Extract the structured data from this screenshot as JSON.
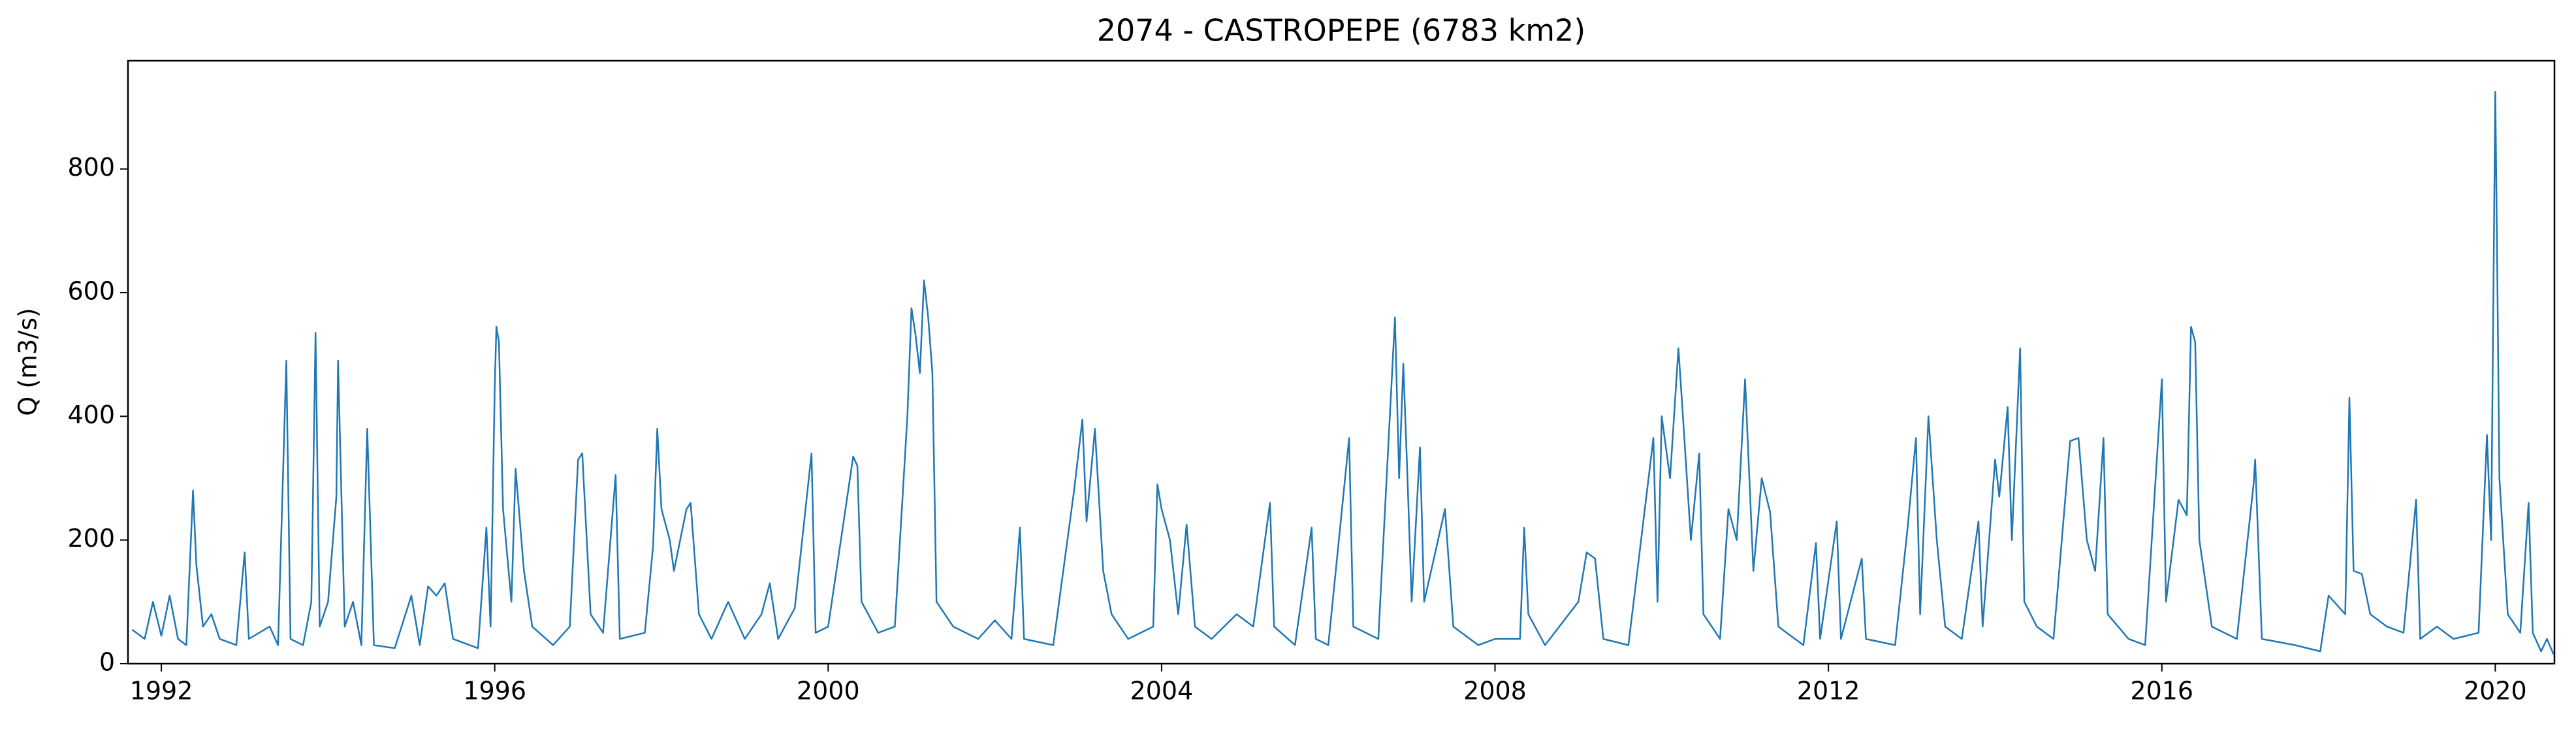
{
  "chart_data": {
    "type": "line",
    "title": "2074 - CASTROPEPE (6783 km2)",
    "y_label": "Q (m3/s)",
    "xlim": [
      1991.6,
      2020.71
    ],
    "xticks": [
      1992,
      1996,
      2000,
      2004,
      2008,
      2012,
      2016,
      2020
    ],
    "ylim": [
      0,
      975
    ],
    "yticks": [
      0,
      200,
      400,
      600,
      800
    ],
    "grid": false,
    "series": [
      {
        "name": "Q",
        "color": "#1f77b4",
        "x": [
          1991.65,
          1991.8,
          1991.9,
          1992.0,
          1992.1,
          1992.2,
          1992.3,
          1992.38,
          1992.42,
          1992.5,
          1992.6,
          1992.7,
          1992.9,
          1993.0,
          1993.05,
          1993.3,
          1993.4,
          1993.5,
          1993.55,
          1993.7,
          1993.8,
          1993.85,
          1993.9,
          1994.0,
          1994.1,
          1994.12,
          1994.2,
          1994.3,
          1994.4,
          1994.47,
          1994.55,
          1994.8,
          1995.0,
          1995.1,
          1995.2,
          1995.3,
          1995.4,
          1995.5,
          1995.8,
          1995.9,
          1995.95,
          1996.0,
          1996.02,
          1996.05,
          1996.1,
          1996.2,
          1996.25,
          1996.35,
          1996.45,
          1996.7,
          1996.9,
          1997.0,
          1997.05,
          1997.15,
          1997.3,
          1997.45,
          1997.5,
          1997.8,
          1997.9,
          1997.95,
          1998.0,
          1998.1,
          1998.15,
          1998.3,
          1998.35,
          1998.45,
          1998.6,
          1998.8,
          1999.0,
          1999.2,
          1999.3,
          1999.4,
          1999.6,
          1999.8,
          1999.85,
          2000.0,
          2000.3,
          2000.35,
          2000.4,
          2000.6,
          2000.8,
          2000.95,
          2001.0,
          2001.05,
          2001.1,
          2001.15,
          2001.2,
          2001.25,
          2001.3,
          2001.5,
          2001.8,
          2002.0,
          2002.2,
          2002.3,
          2002.35,
          2002.7,
          2002.95,
          2003.05,
          2003.1,
          2003.2,
          2003.3,
          2003.4,
          2003.6,
          2003.9,
          2003.95,
          2004.0,
          2004.1,
          2004.2,
          2004.3,
          2004.4,
          2004.6,
          2004.9,
          2005.1,
          2005.3,
          2005.35,
          2005.6,
          2005.8,
          2005.85,
          2006.0,
          2006.25,
          2006.3,
          2006.6,
          2006.8,
          2006.85,
          2006.9,
          2006.95,
          2007.0,
          2007.1,
          2007.15,
          2007.3,
          2007.4,
          2007.5,
          2007.8,
          2008.0,
          2008.3,
          2008.35,
          2008.4,
          2008.6,
          2009.0,
          2009.1,
          2009.2,
          2009.3,
          2009.6,
          2009.9,
          2009.95,
          2010.0,
          2010.1,
          2010.2,
          2010.25,
          2010.35,
          2010.45,
          2010.5,
          2010.7,
          2010.8,
          2010.9,
          2011.0,
          2011.1,
          2011.2,
          2011.3,
          2011.4,
          2011.7,
          2011.85,
          2011.9,
          2012.1,
          2012.15,
          2012.4,
          2012.45,
          2012.8,
          2012.95,
          2013.05,
          2013.1,
          2013.2,
          2013.3,
          2013.4,
          2013.6,
          2013.8,
          2013.85,
          2014.0,
          2014.05,
          2014.15,
          2014.2,
          2014.3,
          2014.35,
          2014.5,
          2014.7,
          2014.85,
          2014.9,
          2015.0,
          2015.1,
          2015.2,
          2015.3,
          2015.35,
          2015.6,
          2015.8,
          2016.0,
          2016.05,
          2016.2,
          2016.3,
          2016.35,
          2016.4,
          2016.45,
          2016.6,
          2016.9,
          2017.1,
          2017.12,
          2017.2,
          2017.6,
          2017.9,
          2018.0,
          2018.2,
          2018.25,
          2018.3,
          2018.4,
          2018.5,
          2018.7,
          2018.9,
          2019.05,
          2019.1,
          2019.3,
          2019.5,
          2019.8,
          2019.9,
          2019.95,
          2020.0,
          2020.02,
          2020.05,
          2020.15,
          2020.3,
          2020.4,
          2020.45,
          2020.55,
          2020.62,
          2020.7
        ],
        "values": [
          55,
          40,
          100,
          45,
          110,
          40,
          30,
          280,
          160,
          60,
          80,
          40,
          30,
          180,
          40,
          60,
          30,
          490,
          40,
          30,
          100,
          535,
          60,
          100,
          270,
          490,
          60,
          100,
          30,
          380,
          30,
          25,
          110,
          30,
          125,
          110,
          130,
          40,
          25,
          220,
          60,
          450,
          545,
          520,
          250,
          100,
          315,
          150,
          60,
          30,
          60,
          330,
          340,
          80,
          50,
          305,
          40,
          50,
          190,
          380,
          250,
          200,
          150,
          250,
          260,
          80,
          40,
          100,
          40,
          80,
          130,
          40,
          90,
          340,
          50,
          60,
          335,
          320,
          100,
          50,
          60,
          400,
          575,
          530,
          470,
          620,
          560,
          470,
          100,
          60,
          40,
          70,
          40,
          220,
          40,
          30,
          280,
          395,
          230,
          380,
          150,
          80,
          40,
          60,
          290,
          250,
          200,
          80,
          225,
          60,
          40,
          80,
          60,
          260,
          60,
          30,
          220,
          40,
          30,
          365,
          60,
          40,
          560,
          300,
          485,
          300,
          100,
          350,
          100,
          190,
          250,
          60,
          30,
          40,
          40,
          220,
          80,
          30,
          100,
          180,
          170,
          40,
          30,
          365,
          100,
          400,
          300,
          510,
          410,
          200,
          340,
          80,
          40,
          250,
          200,
          460,
          150,
          300,
          245,
          60,
          30,
          195,
          40,
          230,
          40,
          170,
          40,
          30,
          220,
          365,
          80,
          400,
          200,
          60,
          40,
          230,
          60,
          330,
          270,
          415,
          200,
          510,
          100,
          60,
          40,
          280,
          360,
          365,
          200,
          150,
          365,
          80,
          40,
          30,
          460,
          100,
          265,
          240,
          545,
          520,
          200,
          60,
          40,
          290,
          330,
          40,
          30,
          20,
          110,
          80,
          430,
          150,
          145,
          80,
          60,
          50,
          265,
          40,
          60,
          40,
          50,
          370,
          200,
          925,
          690,
          300,
          80,
          50,
          260,
          50,
          20,
          40,
          15
        ]
      }
    ]
  }
}
